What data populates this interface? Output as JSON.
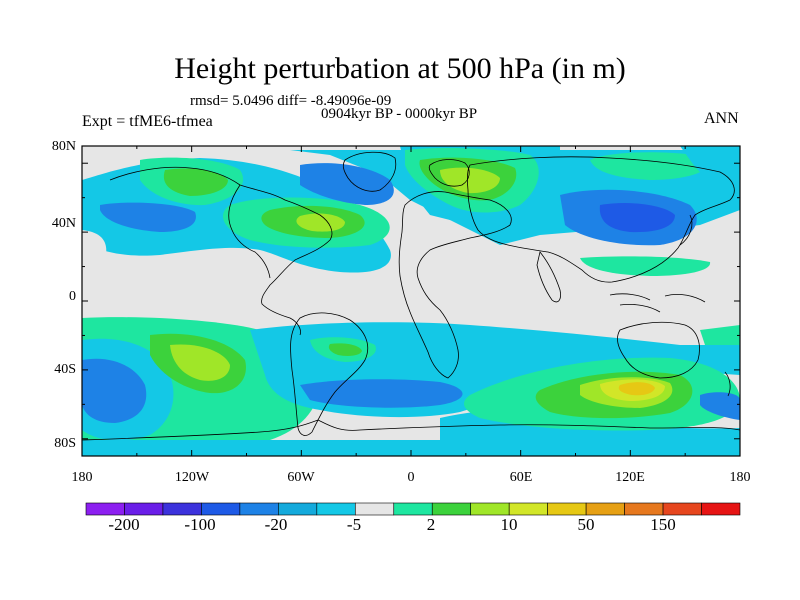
{
  "title": "Height perturbation at 500 hPa (in m)",
  "stats": "rmsd= 5.0496 diff= -8.49096e-09",
  "period": "0904kyr BP - 0000kyr BP",
  "expt": "Expt = tfME6-tfmea",
  "season": "ANN",
  "lat_labels": [
    "80N",
    "40N",
    "0",
    "40S",
    "80S"
  ],
  "lon_labels": [
    "180",
    "120W",
    "60W",
    "0",
    "60E",
    "120E",
    "180"
  ],
  "colorbar": {
    "colors": [
      "#8c1ff0",
      "#6a1ee8",
      "#3c32dc",
      "#1e5ae6",
      "#1e82e6",
      "#14aadc",
      "#14c8e6",
      "#e6e6e6",
      "#1ee6a0",
      "#3cd23c",
      "#a0e628",
      "#d2e628",
      "#e6c814",
      "#e6a014",
      "#e6781e",
      "#e6461e",
      "#e61414"
    ],
    "labels": [
      "-200",
      "-100",
      "-20",
      "-5",
      "2",
      "10",
      "50",
      "150"
    ]
  },
  "colors": {
    "neutral": "#e6e6e6",
    "lightblue": "#14c8e6",
    "blue": "#1e82e6",
    "darkblue": "#1e5ae6",
    "green": "#1ee6a0",
    "midgreen": "#3cd23c",
    "yellowgreen": "#a0e628",
    "lime": "#d2e628",
    "orange": "#e6c814"
  }
}
